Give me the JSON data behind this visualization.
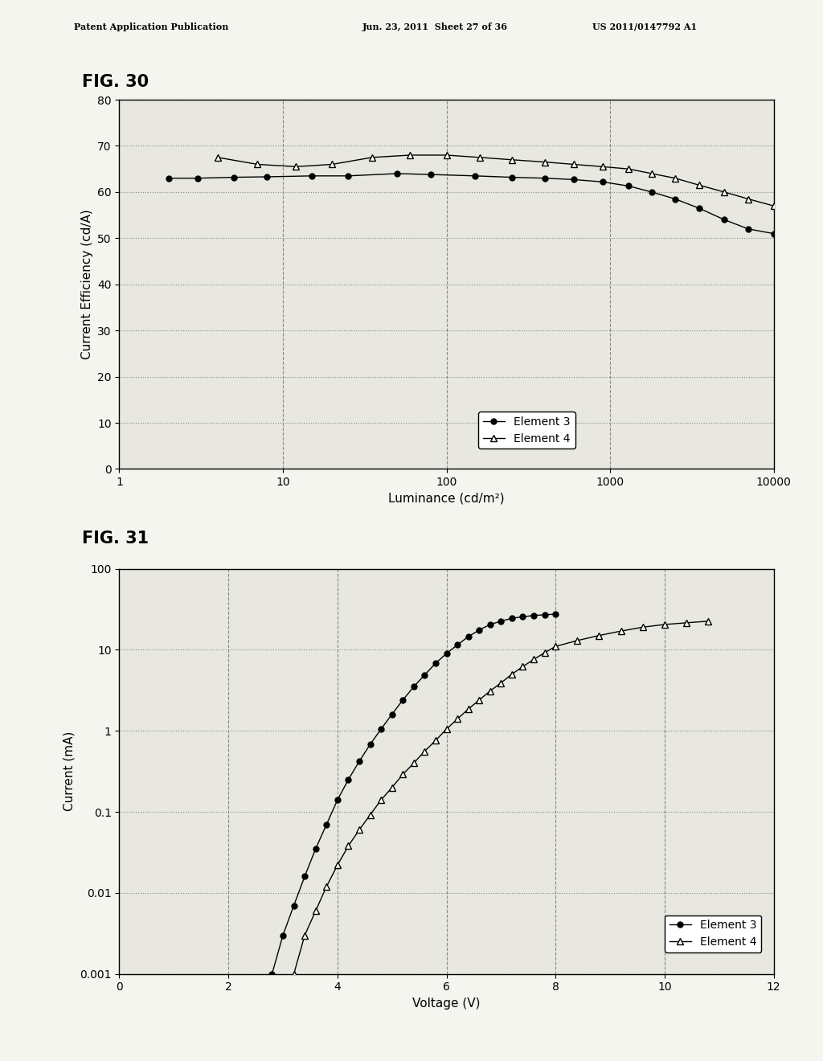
{
  "fig30_title": "FIG. 30",
  "fig31_title": "FIG. 31",
  "header_left": "Patent Application Publication",
  "header_mid": "Jun. 23, 2011  Sheet 27 of 36",
  "header_right": "US 2011/0147792 A1",
  "fig30_xlabel": "Luminance (cd/m²)",
  "fig30_ylabel": "Current Efficiency (cd/A)",
  "fig30_xlim": [
    1,
    10000
  ],
  "fig30_ylim": [
    0,
    80
  ],
  "fig30_yticks": [
    0,
    10,
    20,
    30,
    40,
    50,
    60,
    70,
    80
  ],
  "fig30_xticks": [
    1,
    10,
    100,
    1000,
    10000
  ],
  "fig30_xtick_labels": [
    "1",
    "10",
    "100",
    "1000",
    "10000"
  ],
  "elem3_lum": [
    2,
    3,
    5,
    8,
    15,
    25,
    50,
    80,
    150,
    250,
    400,
    600,
    900,
    1300,
    1800,
    2500,
    3500,
    5000,
    7000,
    10000
  ],
  "elem3_eff": [
    63.0,
    63.0,
    63.2,
    63.3,
    63.5,
    63.5,
    64.0,
    63.8,
    63.5,
    63.2,
    63.0,
    62.7,
    62.2,
    61.3,
    60.0,
    58.5,
    56.5,
    54.0,
    52.0,
    51.0
  ],
  "elem4_lum": [
    4,
    7,
    12,
    20,
    35,
    60,
    100,
    160,
    250,
    400,
    600,
    900,
    1300,
    1800,
    2500,
    3500,
    5000,
    7000,
    10000
  ],
  "elem4_eff": [
    67.5,
    66.0,
    65.5,
    66.0,
    67.5,
    68.0,
    68.0,
    67.5,
    67.0,
    66.5,
    66.0,
    65.5,
    65.0,
    64.0,
    63.0,
    61.5,
    60.0,
    58.5,
    57.0
  ],
  "fig31_xlabel": "Voltage (V)",
  "fig31_ylabel": "Current (mA)",
  "fig31_xlim": [
    0,
    12
  ],
  "fig31_ylim_log": [
    0.001,
    100
  ],
  "fig31_xticks": [
    0,
    2,
    4,
    6,
    8,
    10,
    12
  ],
  "fig31_yticks": [
    0.001,
    0.01,
    0.1,
    1,
    10,
    100
  ],
  "fig31_ytick_labels": [
    "0.001",
    "0.01",
    "0.1",
    "1",
    "10",
    "100"
  ],
  "elem3_volt": [
    2.8,
    3.0,
    3.2,
    3.4,
    3.6,
    3.8,
    4.0,
    4.2,
    4.4,
    4.6,
    4.8,
    5.0,
    5.2,
    5.4,
    5.6,
    5.8,
    6.0,
    6.2,
    6.4,
    6.6,
    6.8,
    7.0,
    7.2,
    7.4,
    7.6,
    7.8,
    8.0
  ],
  "elem3_curr": [
    0.001,
    0.003,
    0.007,
    0.016,
    0.035,
    0.07,
    0.14,
    0.25,
    0.42,
    0.68,
    1.05,
    1.6,
    2.4,
    3.5,
    4.9,
    6.8,
    9.0,
    11.5,
    14.5,
    17.5,
    20.5,
    22.5,
    24.5,
    25.5,
    26.5,
    27.0,
    27.5
  ],
  "elem4_volt": [
    3.2,
    3.4,
    3.6,
    3.8,
    4.0,
    4.2,
    4.4,
    4.6,
    4.8,
    5.0,
    5.2,
    5.4,
    5.6,
    5.8,
    6.0,
    6.2,
    6.4,
    6.6,
    6.8,
    7.0,
    7.2,
    7.4,
    7.6,
    7.8,
    8.0,
    8.4,
    8.8,
    9.2,
    9.6,
    10.0,
    10.4,
    10.8
  ],
  "elem4_curr": [
    0.001,
    0.003,
    0.006,
    0.012,
    0.022,
    0.038,
    0.06,
    0.092,
    0.14,
    0.2,
    0.29,
    0.4,
    0.56,
    0.76,
    1.05,
    1.4,
    1.85,
    2.4,
    3.1,
    3.9,
    5.0,
    6.2,
    7.6,
    9.2,
    11.0,
    13.0,
    15.0,
    17.0,
    19.0,
    20.5,
    21.5,
    22.5
  ],
  "line_color": "#000000",
  "bg_color": "#f5f5f0",
  "plot_bg": "#e8e8e0",
  "grid_dot_color": "#888888",
  "grid_dash_color": "#888888",
  "legend_fontsize": 10,
  "axis_fontsize": 11,
  "tick_fontsize": 10,
  "title_fontsize": 15
}
